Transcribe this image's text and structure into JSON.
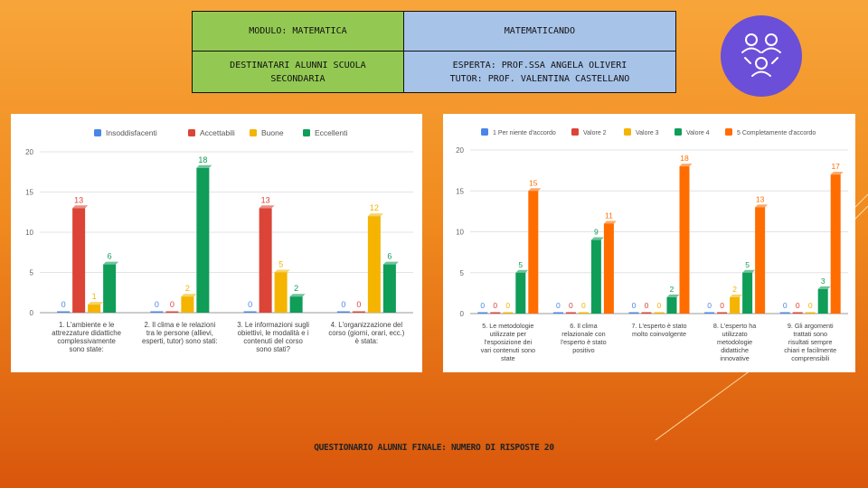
{
  "header": {
    "modulo": "MODULO: MATEMATICA",
    "titolo": "MATEMATICANDO",
    "destinatari_1": "DESTINATARI   ALUNNI SCUOLA",
    "destinatari_2": "SECONDARIA",
    "esperta": "ESPERTA: PROF.SSA ANGELA OLIVERI",
    "tutor": "TUTOR: PROF.  VALENTINA CASTELLANO"
  },
  "footer": {
    "text": "QUESTIONARIO ALUNNI FINALE: NUMERO DI RISPOSTE  20"
  },
  "logo": {
    "icon": "people-network-icon",
    "color": "#6b4fd8"
  },
  "chart_data": [
    {
      "type": "bar",
      "ylim": [
        0,
        20
      ],
      "yticks": [
        0,
        5,
        10,
        15,
        20
      ],
      "categories": [
        [
          "1. L'ambiente e le",
          "attrezzature didattiche",
          "complessivamente",
          "sono state:"
        ],
        [
          "2. Il clima e le relazioni",
          "tra le persone (allievi,",
          "esperti, tutor) sono stati:"
        ],
        [
          "3. Le informazioni sugli",
          "obiettivi, le modalità e i",
          "contenuti del corso",
          "sono stati?"
        ],
        [
          "4. L'organizzazione del",
          "corso (giorni, orari, ecc.)",
          "è stata:"
        ]
      ],
      "series": [
        {
          "name": "Insoddisfacenti",
          "color": "#4a86e8",
          "values": [
            0,
            0,
            0,
            0
          ]
        },
        {
          "name": "Accettabili",
          "color": "#db4437",
          "values": [
            13,
            0,
            13,
            0
          ]
        },
        {
          "name": "Buone",
          "color": "#f4b400",
          "values": [
            1,
            2,
            5,
            12
          ]
        },
        {
          "name": "Eccellenti",
          "color": "#0f9d58",
          "values": [
            6,
            18,
            2,
            6
          ]
        }
      ]
    },
    {
      "type": "bar",
      "ylim": [
        0,
        20
      ],
      "yticks": [
        0,
        5,
        10,
        15,
        20
      ],
      "categories": [
        [
          "5. Le metodologie",
          "utilizzate per",
          "l'esposizione dei",
          "vari contenuti sono",
          "state"
        ],
        [
          "6. Il clima",
          "relazionale con",
          "l'esperto è stato",
          "positivo"
        ],
        [
          "7. L'esperto è stato",
          "molto coinvolgente"
        ],
        [
          "8. L'esperto ha",
          "utilizzato",
          "metodologie",
          "didattiche",
          "innovative"
        ],
        [
          "9. Gli argomenti",
          "trattati sono",
          "risultati sempre",
          "chiari e facilmente",
          "comprensibili"
        ]
      ],
      "series": [
        {
          "name": "1 Per niente d'accordo",
          "color": "#4a86e8",
          "values": [
            0,
            0,
            0,
            0,
            0
          ]
        },
        {
          "name": "Valore 2",
          "color": "#db4437",
          "values": [
            0,
            0,
            0,
            0,
            0
          ]
        },
        {
          "name": "Valore 3",
          "color": "#f4b400",
          "values": [
            0,
            0,
            0,
            2,
            0
          ]
        },
        {
          "name": "Valore 4",
          "color": "#0f9d58",
          "values": [
            5,
            9,
            2,
            5,
            3
          ]
        },
        {
          "name": "5 Completamente d'accordo",
          "color": "#ff6d01",
          "values": [
            15,
            11,
            18,
            13,
            17
          ]
        }
      ]
    }
  ]
}
